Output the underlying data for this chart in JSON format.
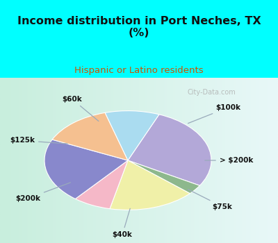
{
  "title": "Income distribution in Port Neches, TX\n(%)",
  "subtitle": "Hispanic or Latino residents",
  "title_color": "#111111",
  "subtitle_color": "#cc5500",
  "bg_cyan": "#00ffff",
  "chart_bg_left": "#c8eedd",
  "chart_bg_right": "#e8f8f8",
  "labels": [
    "$100k",
    "> $200k",
    "$75k",
    "$40k",
    "$200k",
    "$125k",
    "$60k"
  ],
  "sizes": [
    26,
    3,
    16,
    7,
    20,
    13,
    10
  ],
  "colors": [
    "#b3a8d8",
    "#8db88d",
    "#f0f0a8",
    "#f5b8c8",
    "#8888cc",
    "#f5c090",
    "#aadcf0"
  ],
  "startangle": 68,
  "watermark": "City-Data.com",
  "watermark_color": "#aaaaaa"
}
